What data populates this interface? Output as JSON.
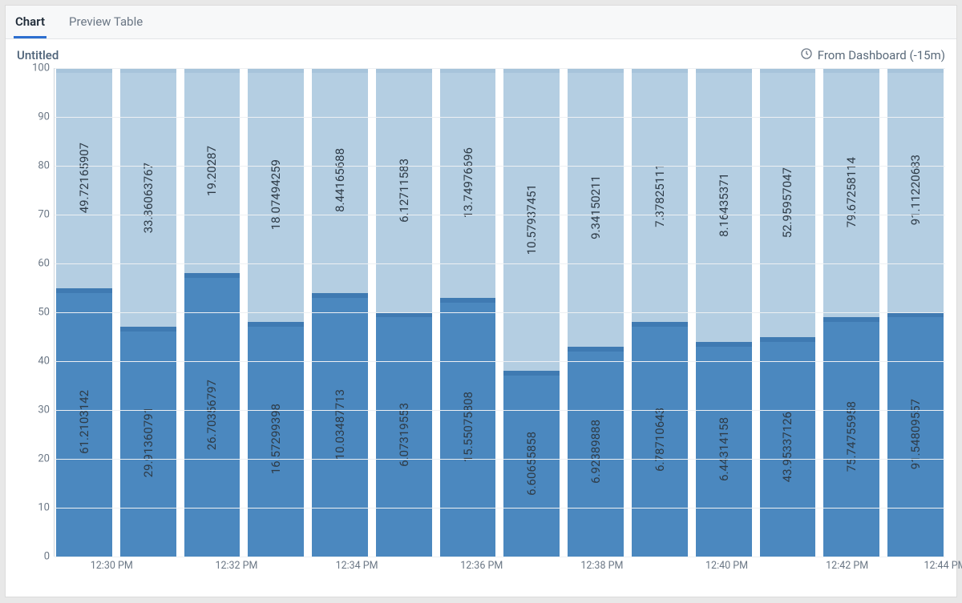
{
  "tabs": {
    "chart": "Chart",
    "preview_table": "Preview Table",
    "active": "chart"
  },
  "chart": {
    "title": "Untitled",
    "time_range_label": "From Dashboard (-15m)",
    "type": "stacked-bar",
    "ylim": [
      0,
      100
    ],
    "ytick_step": 10,
    "yticks": [
      0,
      10,
      20,
      30,
      40,
      50,
      60,
      70,
      80,
      90,
      100
    ],
    "background_color": "#ffffff",
    "grid_color": "#edf0f3",
    "axis_text_color": "#6b7785",
    "bar_label_color": "#2e3b47",
    "bar_label_fontsize": 15,
    "series_colors": {
      "bottom": "#4b88bf",
      "bottom_cap": "#3f7ab2",
      "top": "#b4cee2",
      "top_cap": "#a7c4db"
    },
    "bars": [
      {
        "bottom_value": 55,
        "top_value": 45,
        "bottom_label": "61.2103142",
        "top_label": "49.72165907"
      },
      {
        "bottom_value": 47,
        "top_value": 53,
        "bottom_label": "29.91360791",
        "top_label": "33.86063767"
      },
      {
        "bottom_value": 58,
        "top_value": 42,
        "bottom_label": "26.70356797",
        "top_label": "19.20287"
      },
      {
        "bottom_value": 48,
        "top_value": 52,
        "bottom_label": "16.57299398",
        "top_label": "18.07494259"
      },
      {
        "bottom_value": 54,
        "top_value": 46,
        "bottom_label": "10.03487713",
        "top_label": "8.44165688"
      },
      {
        "bottom_value": 50,
        "top_value": 50,
        "bottom_label": "6.07319553",
        "top_label": "6.12711583"
      },
      {
        "bottom_value": 53,
        "top_value": 47,
        "bottom_label": "15.55075808",
        "top_label": "13.74976696"
      },
      {
        "bottom_value": 38,
        "top_value": 62,
        "bottom_label": "6.60655858",
        "top_label": "10.57937451"
      },
      {
        "bottom_value": 43,
        "top_value": 57,
        "bottom_label": "6.92389888",
        "top_label": "9.34150211"
      },
      {
        "bottom_value": 48,
        "top_value": 52,
        "bottom_label": "6.78710643",
        "top_label": "7.37825111"
      },
      {
        "bottom_value": 44,
        "top_value": 56,
        "bottom_label": "6.44314158",
        "top_label": "8.16435371"
      },
      {
        "bottom_value": 45,
        "top_value": 55,
        "bottom_label": "43.95337126",
        "top_label": "52.95957047"
      },
      {
        "bottom_value": 49,
        "top_value": 51,
        "bottom_label": "75.74755958",
        "top_label": "79.67258114"
      },
      {
        "bottom_value": 50,
        "top_value": 50,
        "bottom_label": "91.54809557",
        "top_label": "91.11220683"
      }
    ],
    "x_ticks": [
      {
        "pos_pct": 6.5,
        "label": "12:30 PM"
      },
      {
        "pos_pct": 20.5,
        "label": "12:32 PM"
      },
      {
        "pos_pct": 34,
        "label": "12:34 PM"
      },
      {
        "pos_pct": 48,
        "label": "12:36 PM"
      },
      {
        "pos_pct": 61.5,
        "label": "12:38 PM"
      },
      {
        "pos_pct": 75.5,
        "label": "12:40 PM"
      },
      {
        "pos_pct": 89,
        "label": "12:42 PM"
      },
      {
        "pos_pct": 100,
        "label": "12:44 PM"
      }
    ]
  }
}
